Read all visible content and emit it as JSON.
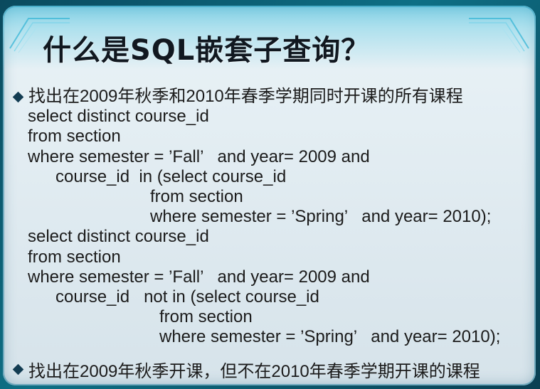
{
  "slide": {
    "title": "什么是SQL嵌套子查询？",
    "bullets": [
      "找出在2009年秋季和2010年春季学期同时开课的所有课程",
      "找出在2009年秋季开课，但不在2010年春季学期开课的课程"
    ],
    "query1": [
      "select distinct course_id",
      "from section",
      "where semester = ’Fall’   and year= 2009 and",
      "course_id  in (select course_id",
      "from section",
      "where semester = ’Spring’   and year= 2010);"
    ],
    "query2": [
      "select distinct course_id",
      "from section",
      "where semester = ’Fall’   and year= 2009 and",
      "course_id   not in (select course_id",
      "from section",
      "where semester = ’Spring’   and year= 2010);"
    ]
  }
}
